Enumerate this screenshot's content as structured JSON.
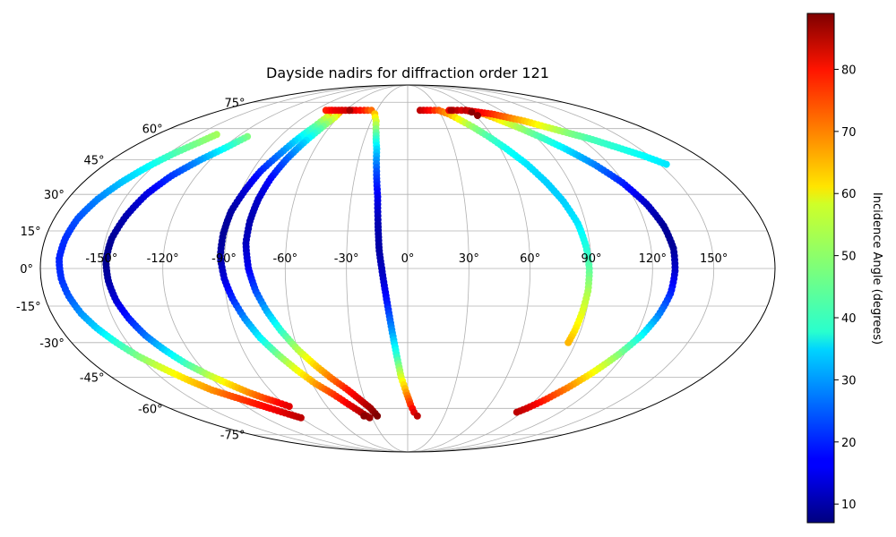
{
  "chart_data": {
    "type": "scatter",
    "projection": "mollweide",
    "title": "Dayside nadirs for diffraction order 121",
    "xlabel": "",
    "ylabel": "",
    "grid": true,
    "x_ticks": [
      "-150°",
      "-120°",
      "-90°",
      "-60°",
      "-30°",
      "0°",
      "30°",
      "60°",
      "90°",
      "120°",
      "150°"
    ],
    "y_ticks": [
      "-75°",
      "-60°",
      "-45°",
      "-30°",
      "-15°",
      "0°",
      "15°",
      "30°",
      "45°",
      "60°",
      "75°"
    ],
    "colorbar": {
      "label": "Incidence Angle (degrees)",
      "colormap": "jet",
      "range": [
        7,
        89
      ],
      "ticks": [
        "10",
        "20",
        "30",
        "40",
        "50",
        "60",
        "70",
        "80"
      ]
    },
    "series": [
      {
        "points": [
          {
            "lon": -137,
            "lat": 57,
            "c": 51
          },
          {
            "lon": -141,
            "lat": 53,
            "c": 48
          },
          {
            "lon": -147,
            "lat": 48,
            "c": 44
          },
          {
            "lon": -153,
            "lat": 42,
            "c": 38
          },
          {
            "lon": -159,
            "lat": 35,
            "c": 33
          },
          {
            "lon": -164,
            "lat": 28,
            "c": 28
          },
          {
            "lon": -168,
            "lat": 20,
            "c": 24
          },
          {
            "lon": -170,
            "lat": 12,
            "c": 21
          },
          {
            "lon": -171,
            "lat": 4,
            "c": 20
          },
          {
            "lon": -170,
            "lat": -4,
            "c": 21
          },
          {
            "lon": -168,
            "lat": -11,
            "c": 24
          },
          {
            "lon": -165,
            "lat": -18,
            "c": 29
          },
          {
            "lon": -161,
            "lat": -24,
            "c": 34
          },
          {
            "lon": -156,
            "lat": -30,
            "c": 41
          },
          {
            "lon": -150,
            "lat": -36,
            "c": 48
          },
          {
            "lon": -143,
            "lat": -41,
            "c": 55
          },
          {
            "lon": -136,
            "lat": -46,
            "c": 61
          },
          {
            "lon": -128,
            "lat": -51,
            "c": 67
          },
          {
            "lon": -120,
            "lat": -54,
            "c": 72
          },
          {
            "lon": -112,
            "lat": -57,
            "c": 76
          },
          {
            "lon": -104,
            "lat": -60,
            "c": 79
          },
          {
            "lon": -96,
            "lat": -63,
            "c": 82
          },
          {
            "lon": -90,
            "lat": -65,
            "c": 84
          }
        ]
      },
      {
        "points": [
          {
            "lon": -113,
            "lat": 56,
            "c": 48
          },
          {
            "lon": -118,
            "lat": 51,
            "c": 40
          },
          {
            "lon": -126,
            "lat": 45,
            "c": 30
          },
          {
            "lon": -134,
            "lat": 38,
            "c": 22
          },
          {
            "lon": -140,
            "lat": 30,
            "c": 15
          },
          {
            "lon": -144,
            "lat": 21,
            "c": 11
          },
          {
            "lon": -147,
            "lat": 12,
            "c": 9
          },
          {
            "lon": -148,
            "lat": 3,
            "c": 8
          },
          {
            "lon": -147,
            "lat": -5,
            "c": 10
          },
          {
            "lon": -145,
            "lat": -13,
            "c": 14
          },
          {
            "lon": -142,
            "lat": -20,
            "c": 19
          },
          {
            "lon": -138,
            "lat": -27,
            "c": 26
          },
          {
            "lon": -133,
            "lat": -33,
            "c": 34
          },
          {
            "lon": -127,
            "lat": -39,
            "c": 43
          },
          {
            "lon": -120,
            "lat": -44,
            "c": 52
          },
          {
            "lon": -113,
            "lat": -48,
            "c": 60
          },
          {
            "lon": -106,
            "lat": -52,
            "c": 67
          },
          {
            "lon": -99,
            "lat": -55,
            "c": 73
          },
          {
            "lon": -93,
            "lat": -57,
            "c": 78
          },
          {
            "lon": -88,
            "lat": -59,
            "c": 81
          }
        ]
      },
      {
        "points": [
          {
            "lon": -74,
            "lat": 70,
            "c": 70
          },
          {
            "lon": -70,
            "lat": 66,
            "c": 55
          },
          {
            "lon": -72,
            "lat": 61,
            "c": 45
          },
          {
            "lon": -76,
            "lat": 55,
            "c": 36
          },
          {
            "lon": -80,
            "lat": 48,
            "c": 28
          },
          {
            "lon": -85,
            "lat": 40,
            "c": 20
          },
          {
            "lon": -88,
            "lat": 32,
            "c": 14
          },
          {
            "lon": -91,
            "lat": 23,
            "c": 10
          },
          {
            "lon": -92,
            "lat": 14,
            "c": 9
          },
          {
            "lon": -92,
            "lat": 5,
            "c": 10
          },
          {
            "lon": -90,
            "lat": -4,
            "c": 14
          },
          {
            "lon": -87,
            "lat": -12,
            "c": 20
          },
          {
            "lon": -83,
            "lat": -20,
            "c": 28
          },
          {
            "lon": -78,
            "lat": -28,
            "c": 37
          },
          {
            "lon": -72,
            "lat": -35,
            "c": 47
          },
          {
            "lon": -65,
            "lat": -42,
            "c": 57
          },
          {
            "lon": -58,
            "lat": -48,
            "c": 66
          },
          {
            "lon": -50,
            "lat": -53,
            "c": 74
          },
          {
            "lon": -43,
            "lat": -58,
            "c": 80
          },
          {
            "lon": -37,
            "lat": -62,
            "c": 84
          },
          {
            "lon": -32,
            "lat": -65,
            "c": 87
          }
        ]
      },
      {
        "points": [
          {
            "lon": -64,
            "lat": 70,
            "c": 70
          },
          {
            "lon": -63,
            "lat": 66,
            "c": 56
          },
          {
            "lon": -66,
            "lat": 60,
            "c": 45
          },
          {
            "lon": -70,
            "lat": 53,
            "c": 34
          },
          {
            "lon": -74,
            "lat": 45,
            "c": 25
          },
          {
            "lon": -77,
            "lat": 37,
            "c": 18
          },
          {
            "lon": -79,
            "lat": 28,
            "c": 13
          },
          {
            "lon": -80,
            "lat": 19,
            "c": 11
          },
          {
            "lon": -80,
            "lat": 10,
            "c": 12
          },
          {
            "lon": -78,
            "lat": 0,
            "c": 16
          },
          {
            "lon": -75,
            "lat": -9,
            "c": 23
          },
          {
            "lon": -71,
            "lat": -17,
            "c": 31
          },
          {
            "lon": -66,
            "lat": -25,
            "c": 41
          },
          {
            "lon": -60,
            "lat": -33,
            "c": 52
          },
          {
            "lon": -53,
            "lat": -40,
            "c": 62
          },
          {
            "lon": -46,
            "lat": -46,
            "c": 70
          },
          {
            "lon": -39,
            "lat": -51,
            "c": 77
          },
          {
            "lon": -33,
            "lat": -56,
            "c": 82
          },
          {
            "lon": -28,
            "lat": -60,
            "c": 86
          },
          {
            "lon": -25,
            "lat": -64,
            "c": 89
          }
        ]
      },
      {
        "points": [
          {
            "lon": -79,
            "lat": 70,
            "c": 76
          },
          {
            "lon": -70,
            "lat": 70,
            "c": 80
          },
          {
            "lon": -60,
            "lat": 70,
            "c": 82
          },
          {
            "lon": -50,
            "lat": 70,
            "c": 80
          },
          {
            "lon": -42,
            "lat": 70,
            "c": 76
          },
          {
            "lon": -35,
            "lat": 70,
            "c": 70
          },
          {
            "lon": -30,
            "lat": 68,
            "c": 63
          },
          {
            "lon": -26,
            "lat": 64,
            "c": 55
          },
          {
            "lon": -23,
            "lat": 58,
            "c": 46
          },
          {
            "lon": -20,
            "lat": 50,
            "c": 35
          },
          {
            "lon": -18,
            "lat": 40,
            "c": 24
          },
          {
            "lon": -16,
            "lat": 29,
            "c": 16
          },
          {
            "lon": -15,
            "lat": 18,
            "c": 11
          },
          {
            "lon": -14,
            "lat": 7,
            "c": 10
          },
          {
            "lon": -12,
            "lat": -4,
            "c": 13
          },
          {
            "lon": -10,
            "lat": -15,
            "c": 20
          },
          {
            "lon": -8,
            "lat": -26,
            "c": 30
          },
          {
            "lon": -6,
            "lat": -36,
            "c": 42
          },
          {
            "lon": -4,
            "lat": -45,
            "c": 55
          },
          {
            "lon": -1,
            "lat": -52,
            "c": 66
          },
          {
            "lon": 2,
            "lat": -58,
            "c": 75
          },
          {
            "lon": 5,
            "lat": -62,
            "c": 81
          },
          {
            "lon": 8,
            "lat": -64,
            "c": 84
          }
        ]
      },
      {
        "points": [
          {
            "lon": 12,
            "lat": 70,
            "c": 84
          },
          {
            "lon": 22,
            "lat": 70,
            "c": 78
          },
          {
            "lon": 30,
            "lat": 70,
            "c": 72
          },
          {
            "lon": 37,
            "lat": 68,
            "c": 66
          },
          {
            "lon": 43,
            "lat": 65,
            "c": 58
          },
          {
            "lon": 50,
            "lat": 61,
            "c": 50
          },
          {
            "lon": 57,
            "lat": 56,
            "c": 44
          },
          {
            "lon": 64,
            "lat": 50,
            "c": 39
          },
          {
            "lon": 71,
            "lat": 43,
            "c": 36
          },
          {
            "lon": 77,
            "lat": 35,
            "c": 34
          },
          {
            "lon": 82,
            "lat": 27,
            "c": 34
          },
          {
            "lon": 86,
            "lat": 18,
            "c": 36
          },
          {
            "lon": 88,
            "lat": 9,
            "c": 40
          },
          {
            "lon": 89,
            "lat": 0,
            "c": 45
          },
          {
            "lon": 89,
            "lat": -9,
            "c": 51
          },
          {
            "lon": 88,
            "lat": -18,
            "c": 56
          },
          {
            "lon": 87,
            "lat": -25,
            "c": 60
          },
          {
            "lon": 86,
            "lat": -30,
            "c": 64
          }
        ]
      },
      {
        "points": [
          {
            "lon": 40,
            "lat": 70,
            "c": 80
          },
          {
            "lon": 48,
            "lat": 70,
            "c": 84
          },
          {
            "lon": 56,
            "lat": 70,
            "c": 80
          },
          {
            "lon": 63,
            "lat": 69,
            "c": 74
          },
          {
            "lon": 69,
            "lat": 68,
            "c": 68
          },
          {
            "lon": 76,
            "lat": 65,
            "c": 60
          },
          {
            "lon": 84,
            "lat": 61,
            "c": 52
          },
          {
            "lon": 93,
            "lat": 56,
            "c": 44
          },
          {
            "lon": 102,
            "lat": 50,
            "c": 36
          },
          {
            "lon": 111,
            "lat": 43,
            "c": 28
          },
          {
            "lon": 119,
            "lat": 35,
            "c": 20
          },
          {
            "lon": 125,
            "lat": 26,
            "c": 13
          },
          {
            "lon": 129,
            "lat": 17,
            "c": 9
          },
          {
            "lon": 131,
            "lat": 8,
            "c": 9
          },
          {
            "lon": 131,
            "lat": -1,
            "c": 13
          },
          {
            "lon": 130,
            "lat": -10,
            "c": 20
          },
          {
            "lon": 127,
            "lat": -19,
            "c": 28
          },
          {
            "lon": 123,
            "lat": -27,
            "c": 38
          },
          {
            "lon": 117,
            "lat": -35,
            "c": 48
          },
          {
            "lon": 110,
            "lat": -43,
            "c": 58
          },
          {
            "lon": 103,
            "lat": -50,
            "c": 68
          },
          {
            "lon": 96,
            "lat": -56,
            "c": 76
          },
          {
            "lon": 90,
            "lat": -60,
            "c": 82
          },
          {
            "lon": 86,
            "lat": -62,
            "c": 84
          }
        ]
      },
      {
        "points": [
          {
            "lon": 56,
            "lat": 70,
            "c": 84
          },
          {
            "lon": 66,
            "lat": 69,
            "c": 80
          },
          {
            "lon": 76,
            "lat": 68,
            "c": 76
          },
          {
            "lon": 86,
            "lat": 66,
            "c": 70
          },
          {
            "lon": 96,
            "lat": 64,
            "c": 63
          },
          {
            "lon": 106,
            "lat": 61,
            "c": 56
          },
          {
            "lon": 116,
            "lat": 58,
            "c": 49
          },
          {
            "lon": 126,
            "lat": 55,
            "c": 44
          },
          {
            "lon": 136,
            "lat": 51,
            "c": 41
          },
          {
            "lon": 146,
            "lat": 47,
            "c": 38
          },
          {
            "lon": 154,
            "lat": 43,
            "c": 36
          }
        ]
      },
      {
        "points": [
          {
            "lon": 60,
            "lat": 69,
            "c": 88
          },
          {
            "lon": 62,
            "lat": 67,
            "c": 88
          },
          {
            "lon": 42,
            "lat": 70,
            "c": 86
          },
          {
            "lon": -56,
            "lat": 70,
            "c": 86
          },
          {
            "lon": -36,
            "lat": -64,
            "c": 88
          }
        ]
      }
    ]
  }
}
